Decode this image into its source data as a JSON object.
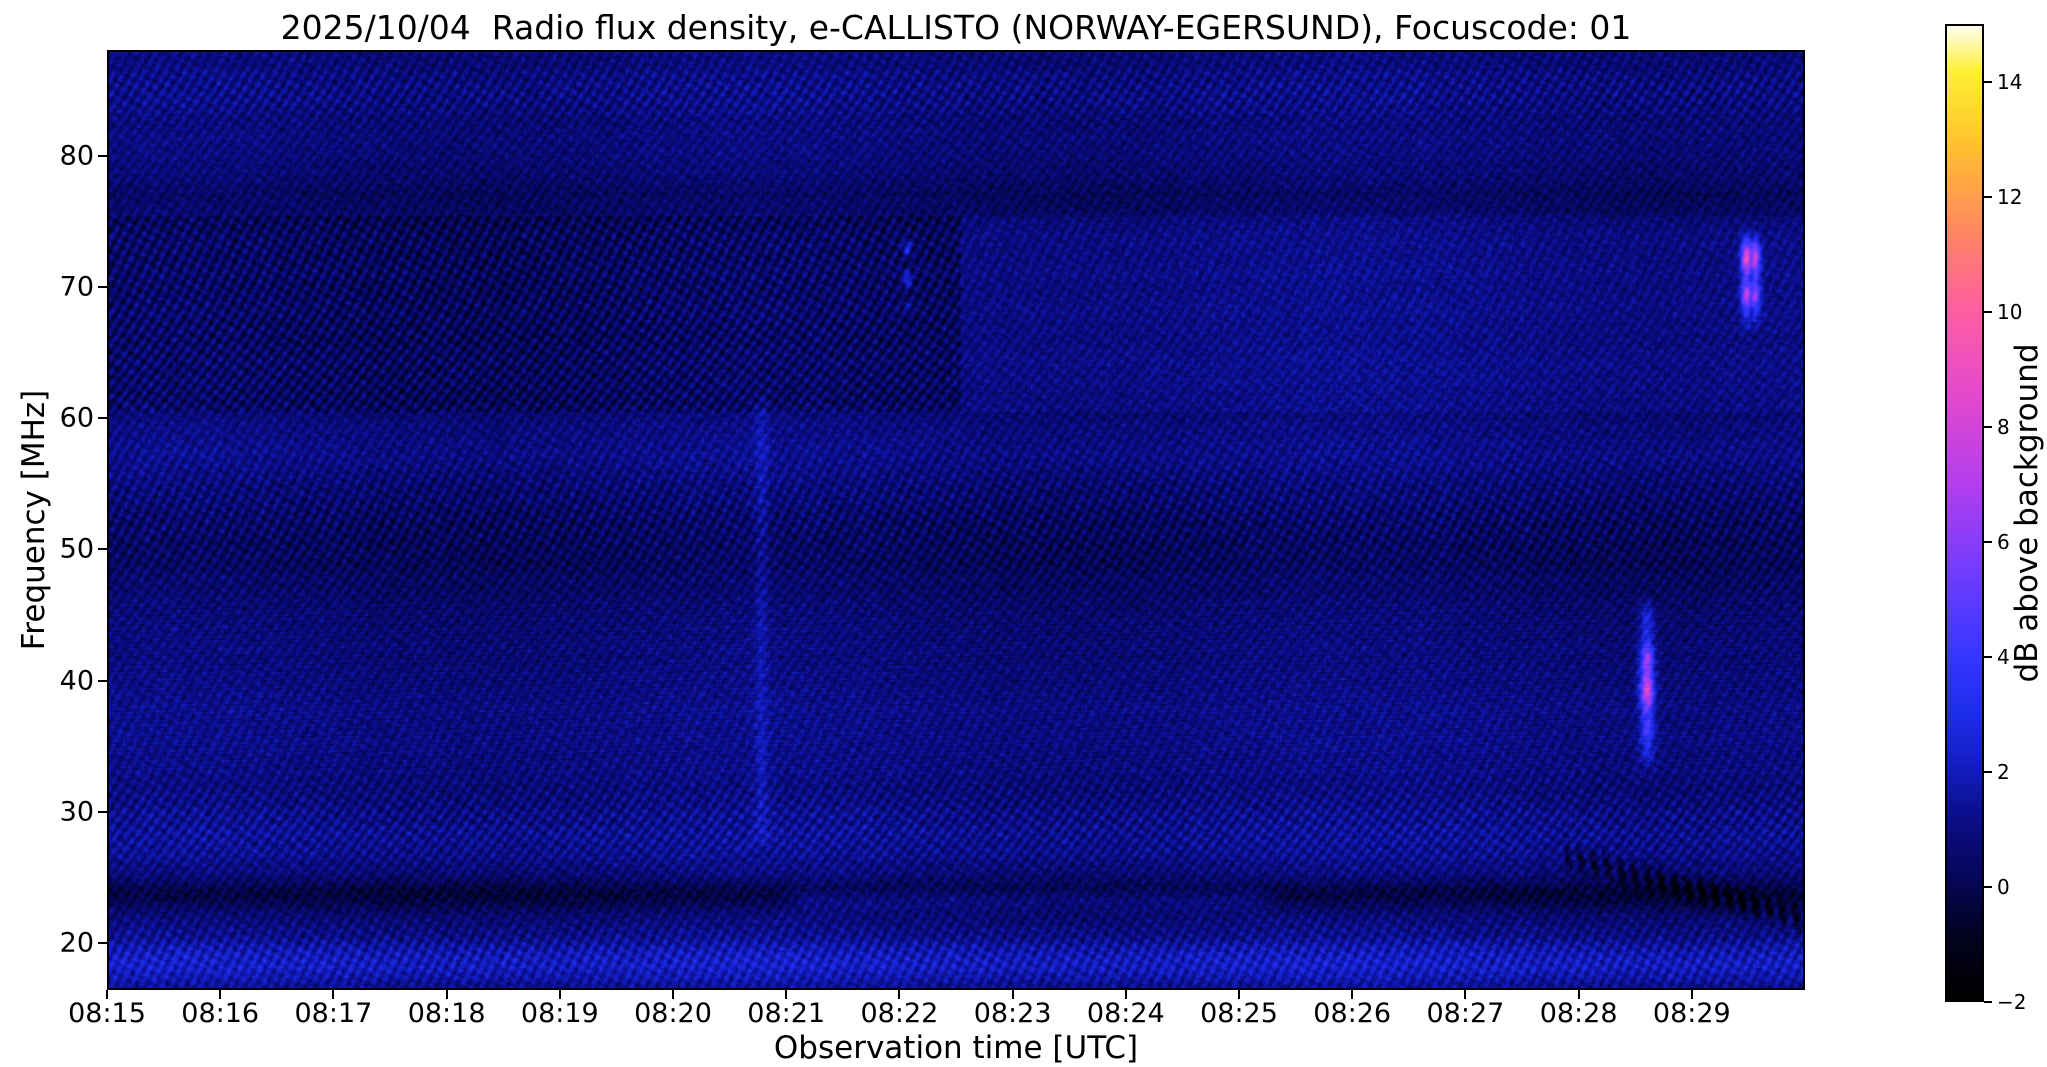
{
  "chart_data": {
    "type": "heatmap",
    "title": "2025/10/04  Radio flux density, e-CALLISTO (NORWAY-EGERSUND), Focuscode: 01",
    "date": "2025/10/04",
    "instrument": "e-CALLISTO",
    "station": "NORWAY-EGERSUND",
    "focuscode": "01",
    "xlabel": "Observation time [UTC]",
    "ylabel": "Frequency [MHz]",
    "colorbar_label": "dB above background",
    "x_start": "08:15",
    "x_ticks": [
      "08:15",
      "08:16",
      "08:17",
      "08:18",
      "08:19",
      "08:20",
      "08:21",
      "08:22",
      "08:23",
      "08:24",
      "08:25",
      "08:26",
      "08:27",
      "08:28",
      "08:29"
    ],
    "x_range_minutes": [
      0,
      15
    ],
    "y_ticks": [
      20,
      30,
      40,
      50,
      60,
      70,
      80
    ],
    "y_range_mhz": [
      16.4,
      88.1
    ],
    "colorbar_ticks": [
      "−2",
      "0",
      "2",
      "4",
      "6",
      "8",
      "10",
      "12",
      "14"
    ],
    "colorbar_tick_values": [
      -2,
      0,
      2,
      4,
      6,
      8,
      10,
      12,
      14
    ],
    "colorbar_range_db": [
      -2,
      15
    ],
    "background_level_db": 0.8,
    "grid": false,
    "legend": "colorbar-right",
    "colormap_stops": [
      [
        0.0,
        [
          0,
          0,
          0
        ]
      ],
      [
        0.059,
        [
          2,
          2,
          30
        ]
      ],
      [
        0.118,
        [
          6,
          6,
          85
        ]
      ],
      [
        0.176,
        [
          10,
          12,
          130
        ]
      ],
      [
        0.235,
        [
          18,
          28,
          190
        ]
      ],
      [
        0.294,
        [
          30,
          45,
          235
        ]
      ],
      [
        0.353,
        [
          55,
          55,
          255
        ]
      ],
      [
        0.44,
        [
          115,
          60,
          252
        ]
      ],
      [
        0.53,
        [
          180,
          62,
          238
        ]
      ],
      [
        0.62,
        [
          228,
          72,
          205
        ]
      ],
      [
        0.71,
        [
          255,
          95,
          160
        ]
      ],
      [
        0.79,
        [
          255,
          135,
          95
        ]
      ],
      [
        0.88,
        [
          255,
          195,
          45
        ]
      ],
      [
        0.953,
        [
          255,
          240,
          50
        ]
      ],
      [
        1.0,
        [
          255,
          255,
          240
        ]
      ]
    ],
    "features": [
      {
        "name": "fast-drift-burst-33-46mhz",
        "t_min": 13.62,
        "sigma_s": 2.6,
        "f_lo": 33.0,
        "f_hi": 46.5,
        "envelope_db": 2.3,
        "patchy": false,
        "second_pulse_offset_s": 0,
        "cores": [
          {
            "f": 39.2,
            "w": 1.4,
            "db": 5.2
          },
          {
            "f": 41.6,
            "w": 1.0,
            "db": 3.4
          },
          {
            "f": 36.3,
            "w": 0.8,
            "db": 1.5
          }
        ]
      },
      {
        "name": "burst-pair-68-74mhz",
        "t_min": 14.5,
        "sigma_s": 2.0,
        "f_lo": 66.5,
        "f_hi": 74.8,
        "envelope_db": 2.2,
        "patchy": false,
        "second_pulse_offset_s": 4.5,
        "cores": [
          {
            "f": 72.3,
            "w": 1.1,
            "db": 6.0
          },
          {
            "f": 69.5,
            "w": 0.9,
            "db": 4.4
          }
        ]
      },
      {
        "name": "faint-purple-line-71mhz",
        "t_min": 7.07,
        "sigma_s": 1.6,
        "f_lo": 68.0,
        "f_hi": 74.5,
        "envelope_db": 2.6,
        "patchy": true,
        "second_pulse_offset_s": 0,
        "cores": []
      },
      {
        "name": "faint-vertical-enhancement-30-60mhz",
        "t_min": 5.78,
        "sigma_s": 2.4,
        "f_lo": 27.0,
        "f_hi": 62.0,
        "envelope_db": 0.9,
        "patchy": false,
        "second_pulse_offset_s": 0,
        "cores": []
      }
    ]
  }
}
